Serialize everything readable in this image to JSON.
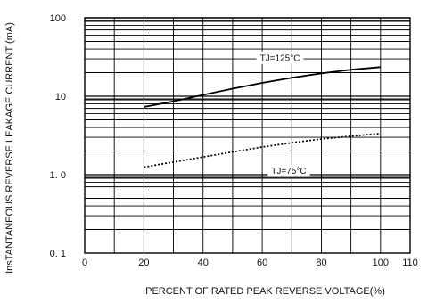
{
  "chart_data": {
    "type": "line",
    "xlabel": "PERCENT OF RATED PEAK REVERSE VOLTAGE(%)",
    "ylabel": "InsTANTANEOUS REVERSE LEAKAGE  CURRENT  (mA)",
    "x_ticks": [
      0,
      20,
      40,
      60,
      80,
      100,
      110
    ],
    "x_tick_labels": [
      "0",
      "20",
      "40",
      "60",
      "80",
      "100",
      "110"
    ],
    "y_ticks": [
      0.1,
      1.0,
      10,
      100
    ],
    "y_tick_labels": [
      "0. 1",
      "1. 0",
      "10",
      "100"
    ],
    "xlim": [
      0,
      110
    ],
    "ylim": [
      0.1,
      100
    ],
    "y_scale": "log",
    "grid": true,
    "series": [
      {
        "name": "TJ=125°C",
        "style": "solid",
        "color": "#000000",
        "x": [
          20,
          30,
          40,
          50,
          60,
          70,
          80,
          90,
          100
        ],
        "y": [
          7.3,
          8.6,
          10.4,
          12.5,
          14.8,
          17.2,
          19.6,
          21.8,
          23.5
        ]
      },
      {
        "name": "TJ=75°C",
        "style": "dotted",
        "color": "#000000",
        "x": [
          20,
          30,
          40,
          50,
          60,
          70,
          80,
          90,
          100
        ],
        "y": [
          1.25,
          1.45,
          1.68,
          1.95,
          2.25,
          2.55,
          2.85,
          3.1,
          3.35
        ]
      }
    ],
    "annotations": [
      {
        "text": "TJ=125°C",
        "series": 0
      },
      {
        "text": "TJ=75°C",
        "series": 1
      }
    ]
  }
}
